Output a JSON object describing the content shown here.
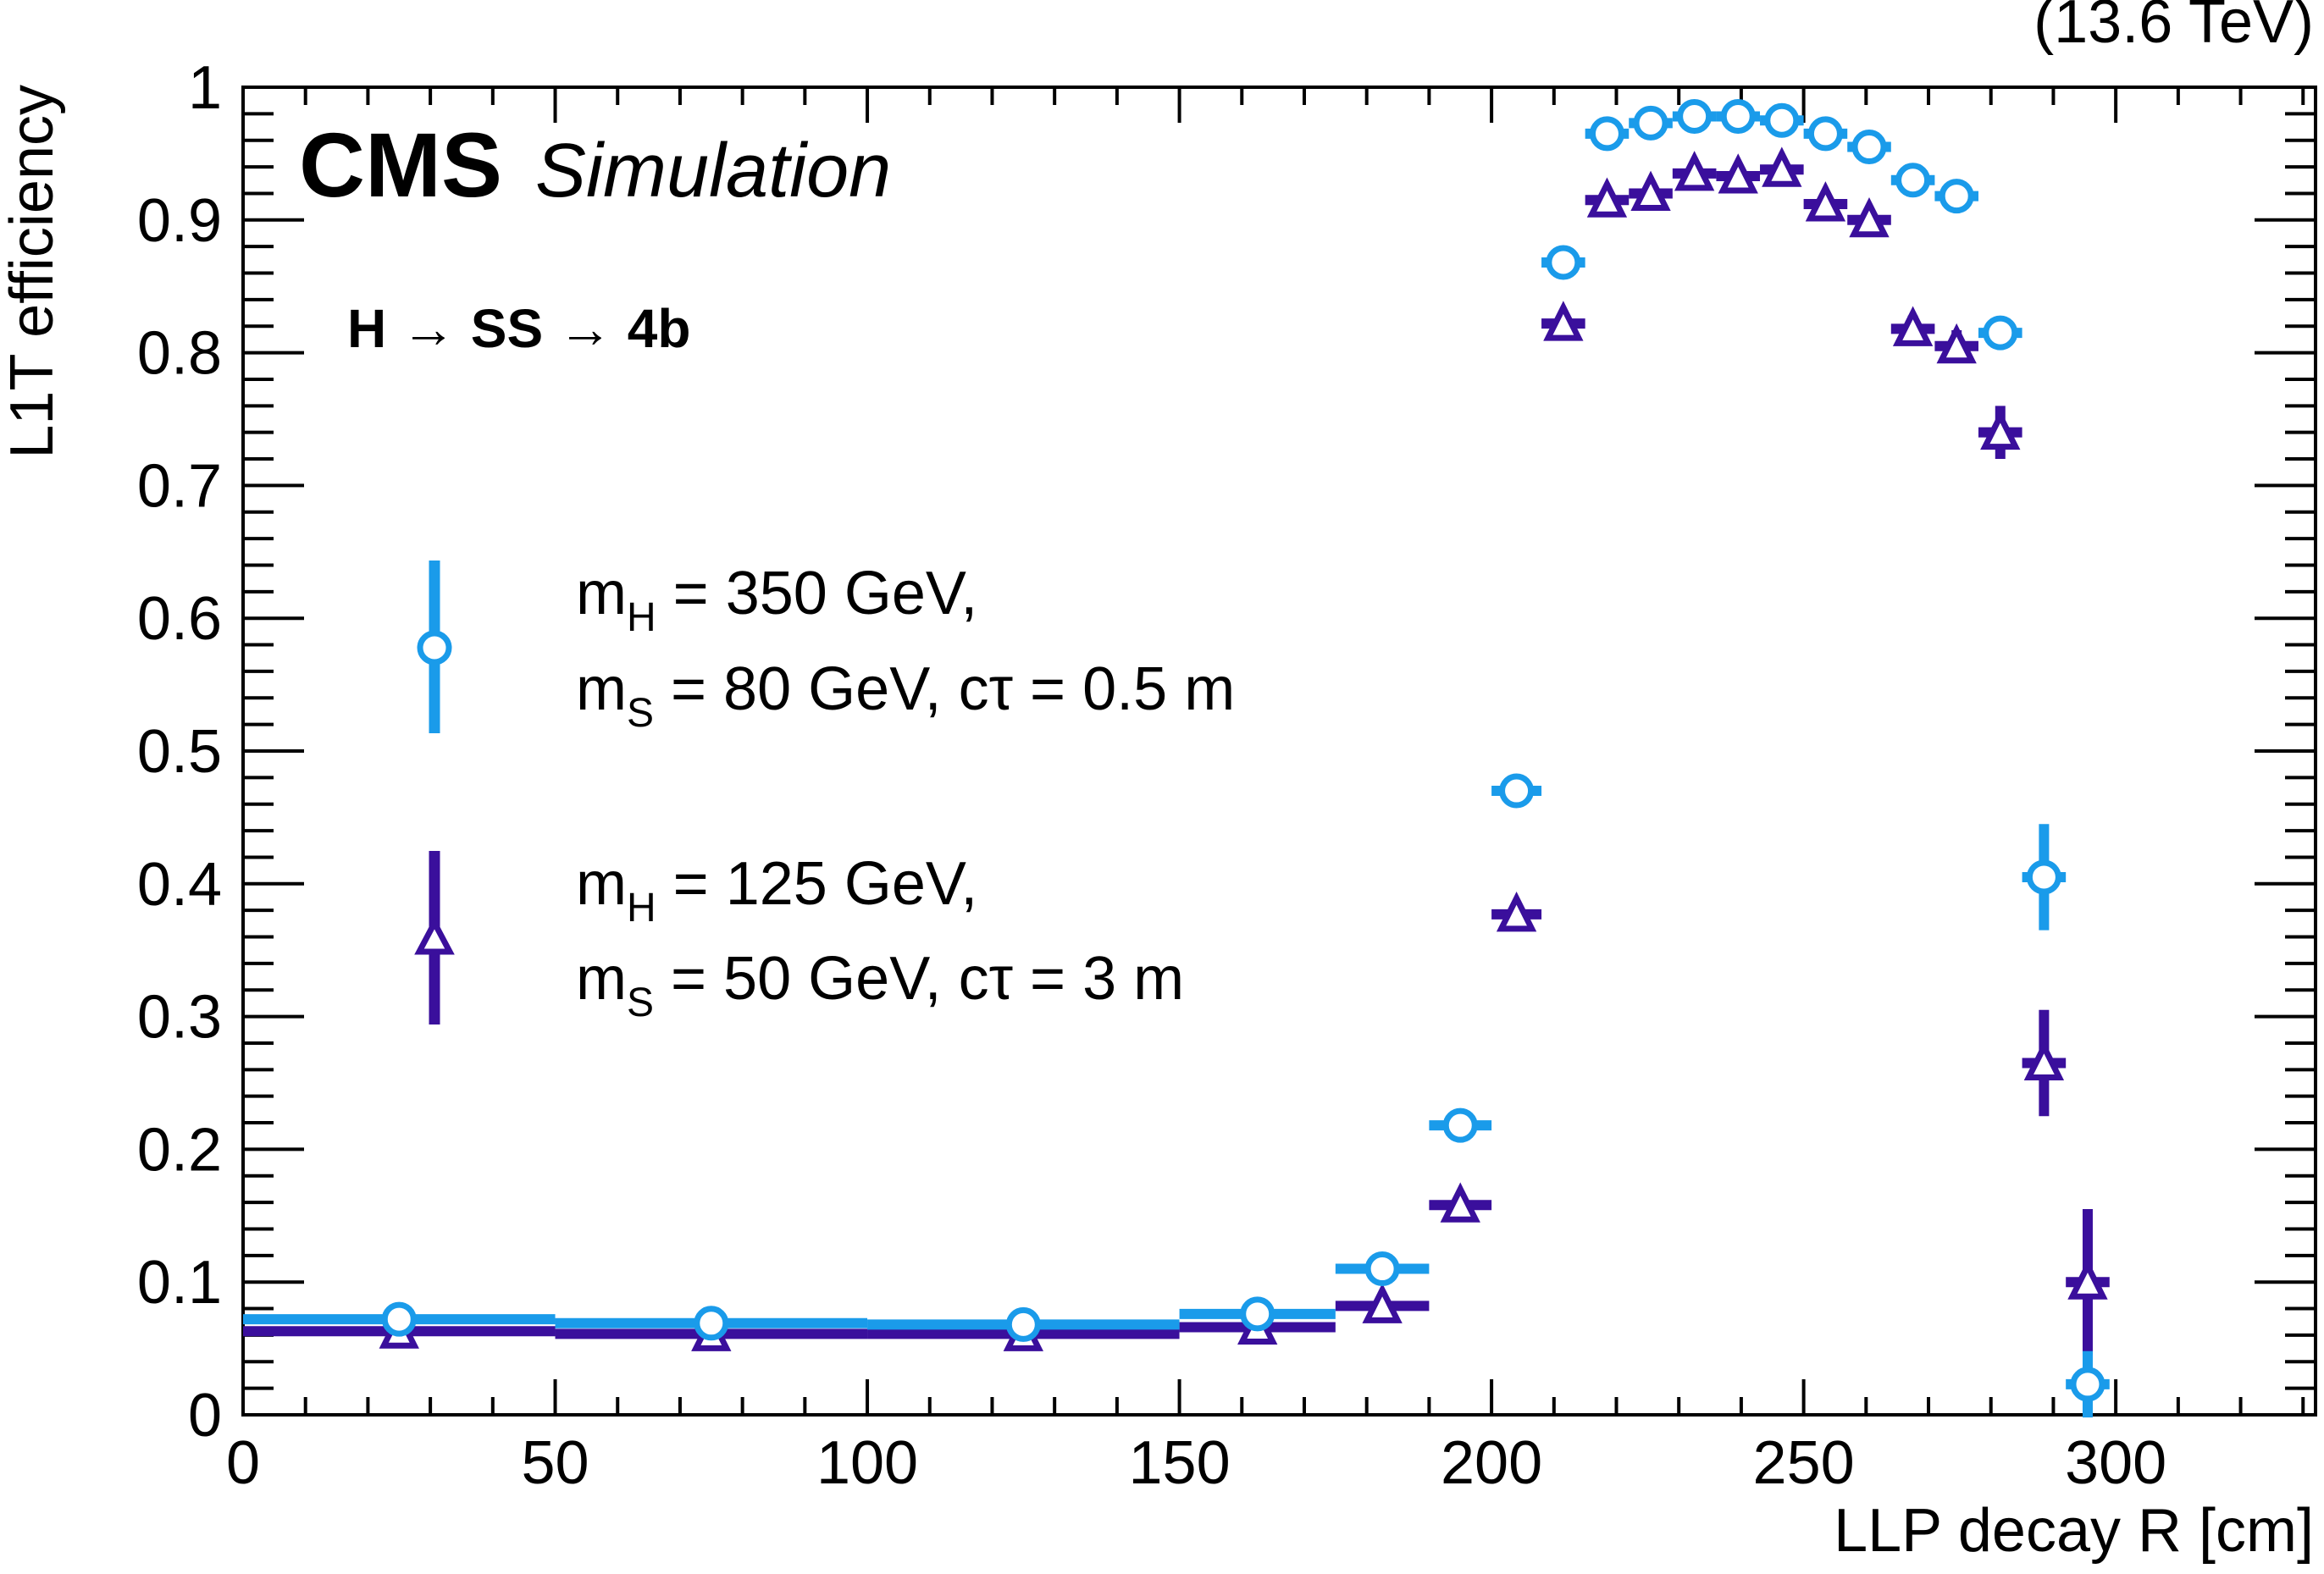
{
  "energy_label": "(13.6 TeV)",
  "cms_label": "CMS",
  "simulation_label": "Simulation",
  "process_label": "H → SS → 4b",
  "colors": {
    "series1": "#1a9bea",
    "series2": "#3a0f9c",
    "axis": "#000000"
  },
  "chart_data": {
    "type": "scatter",
    "title": "",
    "xlabel": "LLP decay R [cm]",
    "ylabel": "L1T efficiency",
    "xlim": [
      0,
      332
    ],
    "ylim": [
      0,
      1
    ],
    "x_ticks": [
      0,
      50,
      100,
      150,
      200,
      250,
      300
    ],
    "y_ticks": [
      0,
      0.1,
      0.2,
      0.3,
      0.4,
      0.5,
      0.6,
      0.7,
      0.8,
      0.9,
      1
    ],
    "y_tick_labels": [
      "0",
      "0.1",
      "0.2",
      "0.3",
      "0.4",
      "0.5",
      "0.6",
      "0.7",
      "0.8",
      "0.9",
      "1"
    ],
    "grid": false,
    "legend_position": "left-middle",
    "series": [
      {
        "name": "mH = 350 GeV, mS = 80 GeV, cτ = 0.5 m",
        "legend_line1": {
          "m": "m",
          "sub": "H",
          "rest": " = 350 GeV,"
        },
        "legend_line2": {
          "m": "m",
          "sub": "S",
          "rest": " = 80 GeV, cτ = 0.5 m"
        },
        "marker": "open-circle",
        "points": [
          {
            "x": 25,
            "xlo": 0,
            "xhi": 50,
            "y": 0.072,
            "err": 0.003
          },
          {
            "x": 75,
            "xlo": 50,
            "xhi": 100,
            "y": 0.069,
            "err": 0.003
          },
          {
            "x": 125,
            "xlo": 100,
            "xhi": 150,
            "y": 0.068,
            "err": 0.003
          },
          {
            "x": 162.5,
            "xlo": 150,
            "xhi": 175,
            "y": 0.076,
            "err": 0.004
          },
          {
            "x": 182.5,
            "xlo": 175,
            "xhi": 190,
            "y": 0.11,
            "err": 0.005
          },
          {
            "x": 195,
            "xlo": 190,
            "xhi": 200,
            "y": 0.218,
            "err": 0.007
          },
          {
            "x": 204,
            "xlo": 200,
            "xhi": 208,
            "y": 0.47,
            "err": 0.008
          },
          {
            "x": 211.5,
            "xlo": 208,
            "xhi": 215,
            "y": 0.868,
            "err": 0.007
          },
          {
            "x": 218.5,
            "xlo": 215,
            "xhi": 222,
            "y": 0.965,
            "err": 0.004
          },
          {
            "x": 225.5,
            "xlo": 222,
            "xhi": 229,
            "y": 0.973,
            "err": 0.004
          },
          {
            "x": 232.5,
            "xlo": 229,
            "xhi": 236,
            "y": 0.978,
            "err": 0.004
          },
          {
            "x": 239.5,
            "xlo": 236,
            "xhi": 243,
            "y": 0.978,
            "err": 0.004
          },
          {
            "x": 246.5,
            "xlo": 243,
            "xhi": 250,
            "y": 0.975,
            "err": 0.004
          },
          {
            "x": 253.5,
            "xlo": 250,
            "xhi": 257,
            "y": 0.965,
            "err": 0.004
          },
          {
            "x": 260.5,
            "xlo": 257,
            "xhi": 264,
            "y": 0.955,
            "err": 0.004
          },
          {
            "x": 267.5,
            "xlo": 264,
            "xhi": 271,
            "y": 0.93,
            "err": 0.005
          },
          {
            "x": 274.5,
            "xlo": 271,
            "xhi": 278,
            "y": 0.918,
            "err": 0.005
          },
          {
            "x": 281.5,
            "xlo": 278,
            "xhi": 285,
            "y": 0.815,
            "err": 0.006
          },
          {
            "x": 288.5,
            "xlo": 285,
            "xhi": 292,
            "y": 0.405,
            "err": 0.04
          },
          {
            "x": 295.5,
            "xlo": 292,
            "xhi": 299,
            "y": 0.023,
            "err": 0.025
          }
        ]
      },
      {
        "name": "mH = 125 GeV, mS = 50 GeV, cτ = 3 m",
        "legend_line1": {
          "m": "m",
          "sub": "H",
          "rest": " = 125 GeV,"
        },
        "legend_line2": {
          "m": "m",
          "sub": "S",
          "rest": " = 50 GeV, cτ = 3 m"
        },
        "marker": "open-triangle",
        "points": [
          {
            "x": 25,
            "xlo": 0,
            "xhi": 50,
            "y": 0.063,
            "err": 0.003
          },
          {
            "x": 75,
            "xlo": 50,
            "xhi": 100,
            "y": 0.061,
            "err": 0.003
          },
          {
            "x": 125,
            "xlo": 100,
            "xhi": 150,
            "y": 0.061,
            "err": 0.003
          },
          {
            "x": 162.5,
            "xlo": 150,
            "xhi": 175,
            "y": 0.066,
            "err": 0.004
          },
          {
            "x": 182.5,
            "xlo": 175,
            "xhi": 190,
            "y": 0.082,
            "err": 0.004
          },
          {
            "x": 195,
            "xlo": 190,
            "xhi": 200,
            "y": 0.158,
            "err": 0.006
          },
          {
            "x": 204,
            "xlo": 200,
            "xhi": 208,
            "y": 0.377,
            "err": 0.008
          },
          {
            "x": 211.5,
            "xlo": 208,
            "xhi": 215,
            "y": 0.822,
            "err": 0.008
          },
          {
            "x": 218.5,
            "xlo": 215,
            "xhi": 222,
            "y": 0.915,
            "err": 0.007
          },
          {
            "x": 225.5,
            "xlo": 222,
            "xhi": 229,
            "y": 0.92,
            "err": 0.007
          },
          {
            "x": 232.5,
            "xlo": 229,
            "xhi": 236,
            "y": 0.935,
            "err": 0.007
          },
          {
            "x": 239.5,
            "xlo": 236,
            "xhi": 243,
            "y": 0.933,
            "err": 0.007
          },
          {
            "x": 246.5,
            "xlo": 243,
            "xhi": 250,
            "y": 0.938,
            "err": 0.007
          },
          {
            "x": 253.5,
            "xlo": 250,
            "xhi": 257,
            "y": 0.912,
            "err": 0.008
          },
          {
            "x": 260.5,
            "xlo": 257,
            "xhi": 264,
            "y": 0.9,
            "err": 0.008
          },
          {
            "x": 267.5,
            "xlo": 264,
            "xhi": 271,
            "y": 0.818,
            "err": 0.01
          },
          {
            "x": 274.5,
            "xlo": 271,
            "xhi": 278,
            "y": 0.805,
            "err": 0.012
          },
          {
            "x": 281.5,
            "xlo": 278,
            "xhi": 285,
            "y": 0.74,
            "err": 0.02
          },
          {
            "x": 288.5,
            "xlo": 285,
            "xhi": 292,
            "y": 0.265,
            "err": 0.04
          },
          {
            "x": 295.5,
            "xlo": 292,
            "xhi": 299,
            "y": 0.1,
            "err": 0.055
          }
        ]
      }
    ]
  }
}
